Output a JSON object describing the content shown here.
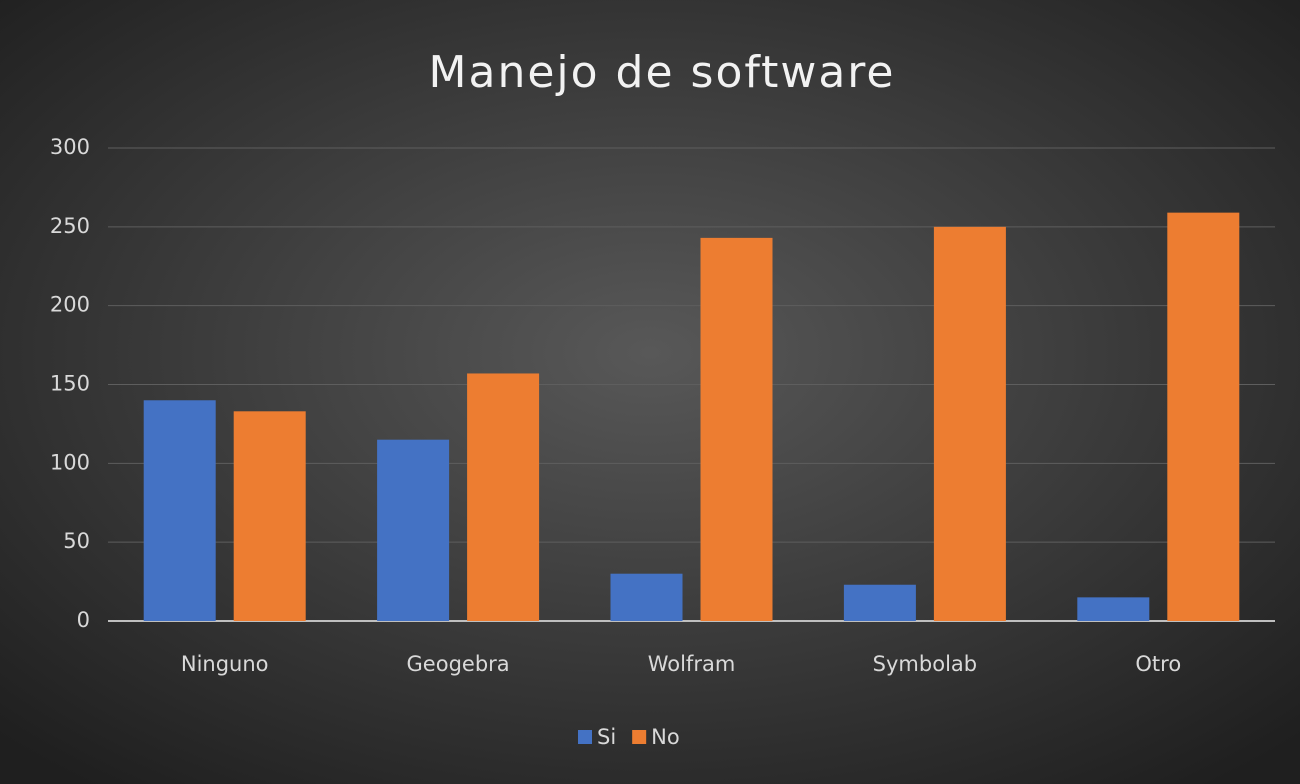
{
  "chart_data": {
    "type": "bar",
    "title": "Manejo de software",
    "categories": [
      "Ninguno",
      "Geogebra",
      "Wolfram",
      "Symbolab",
      "Otro"
    ],
    "series": [
      {
        "name": "Si",
        "color": "#4472c4",
        "values": [
          140,
          115,
          30,
          23,
          15
        ]
      },
      {
        "name": "No",
        "color": "#ed7d31",
        "values": [
          133,
          157,
          243,
          250,
          259
        ]
      }
    ],
    "ylim": [
      0,
      300
    ],
    "yticks": [
      0,
      50,
      100,
      150,
      200,
      250,
      300
    ],
    "grid": true,
    "legend": "bottom"
  }
}
